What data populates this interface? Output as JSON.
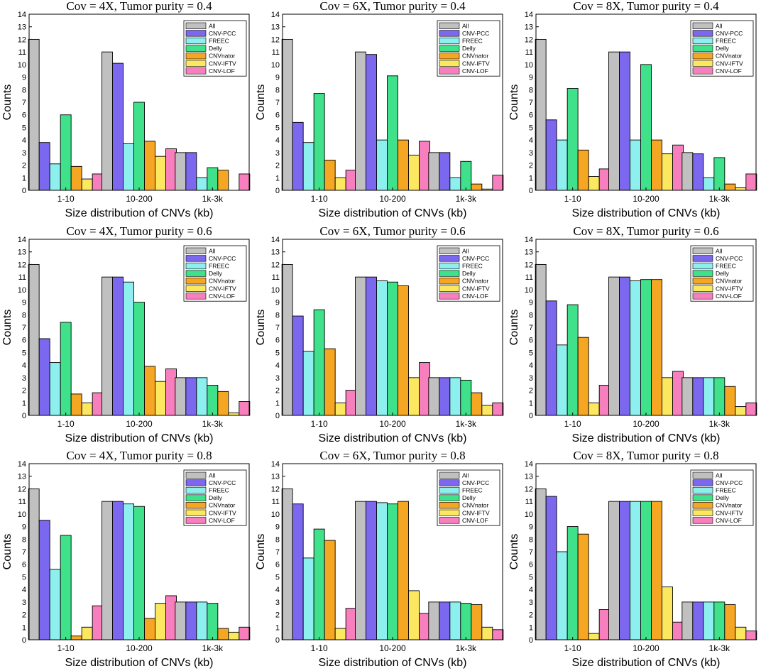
{
  "chart_data": [
    {
      "type": "bar",
      "title": "Cov = 4X, Tumor purity = 0.4",
      "xlabel": "Size distribution of CNVs (kb)",
      "ylabel": "Counts",
      "ylim": [
        0,
        14
      ],
      "yticks": [
        0,
        1,
        2,
        3,
        4,
        5,
        6,
        7,
        8,
        9,
        10,
        11,
        12,
        13,
        14
      ],
      "categories": [
        "1-10",
        "10-200",
        "1k-3k"
      ],
      "legend": "top-right",
      "series": [
        {
          "name": "All",
          "values": [
            12,
            11,
            3
          ]
        },
        {
          "name": "CNV-PCC",
          "values": [
            3.8,
            10.1,
            3
          ]
        },
        {
          "name": "FREEC",
          "values": [
            2.1,
            3.7,
            1
          ]
        },
        {
          "name": "Delly",
          "values": [
            6,
            7,
            1.8
          ]
        },
        {
          "name": "CNVnator",
          "values": [
            1.9,
            3.9,
            1.6
          ]
        },
        {
          "name": "CNV-IFTV",
          "values": [
            0.9,
            2.7,
            0
          ]
        },
        {
          "name": "CNV-LOF",
          "values": [
            1.3,
            3.3,
            1.3
          ]
        }
      ]
    },
    {
      "type": "bar",
      "title": "Cov = 6X, Tumor purity = 0.4",
      "xlabel": "Size distribution of CNVs (kb)",
      "ylabel": "Counts",
      "ylim": [
        0,
        14
      ],
      "yticks": [
        0,
        1,
        2,
        3,
        4,
        5,
        6,
        7,
        8,
        9,
        10,
        11,
        12,
        13,
        14
      ],
      "categories": [
        "1-10",
        "10-200",
        "1k-3k"
      ],
      "legend": "top-right",
      "series": [
        {
          "name": "All",
          "values": [
            12,
            11,
            3
          ]
        },
        {
          "name": "CNV-PCC",
          "values": [
            5.4,
            10.8,
            3
          ]
        },
        {
          "name": "FREEC",
          "values": [
            3.8,
            4,
            1
          ]
        },
        {
          "name": "Delly",
          "values": [
            7.7,
            9.1,
            2.3
          ]
        },
        {
          "name": "CNVnator",
          "values": [
            2.4,
            4,
            0.5
          ]
        },
        {
          "name": "CNV-IFTV",
          "values": [
            1,
            2.8,
            0.1
          ]
        },
        {
          "name": "CNV-LOF",
          "values": [
            1.6,
            3.9,
            1.2
          ]
        }
      ]
    },
    {
      "type": "bar",
      "title": "Cov = 8X, Tumor purity = 0.4",
      "xlabel": "Size distribution of CNVs (kb)",
      "ylabel": "Counts",
      "ylim": [
        0,
        14
      ],
      "yticks": [
        0,
        1,
        2,
        3,
        4,
        5,
        6,
        7,
        8,
        9,
        10,
        11,
        12,
        13,
        14
      ],
      "categories": [
        "1-10",
        "10-200",
        "1k-3k"
      ],
      "legend": "top-right",
      "series": [
        {
          "name": "All",
          "values": [
            12,
            11,
            3
          ]
        },
        {
          "name": "CNV-PCC",
          "values": [
            5.6,
            11,
            2.9
          ]
        },
        {
          "name": "FREEC",
          "values": [
            4,
            4,
            1
          ]
        },
        {
          "name": "Delly",
          "values": [
            8.1,
            10,
            2.6
          ]
        },
        {
          "name": "CNVnator",
          "values": [
            3.2,
            4,
            0.5
          ]
        },
        {
          "name": "CNV-IFTV",
          "values": [
            1.1,
            2.9,
            0.2
          ]
        },
        {
          "name": "CNV-LOF",
          "values": [
            1.7,
            3.6,
            1.3
          ]
        }
      ]
    },
    {
      "type": "bar",
      "title": "Cov = 4X, Tumor purity = 0.6",
      "xlabel": "Size distribution of CNVs (kb)",
      "ylabel": "Counts",
      "ylim": [
        0,
        14
      ],
      "yticks": [
        0,
        1,
        2,
        3,
        4,
        5,
        6,
        7,
        8,
        9,
        10,
        11,
        12,
        13,
        14
      ],
      "categories": [
        "1-10",
        "10-200",
        "1k-3k"
      ],
      "legend": "top-right",
      "series": [
        {
          "name": "All",
          "values": [
            12,
            11,
            3
          ]
        },
        {
          "name": "CNV-PCC",
          "values": [
            6.1,
            11,
            3
          ]
        },
        {
          "name": "FREEC",
          "values": [
            4.2,
            10.6,
            3
          ]
        },
        {
          "name": "Delly",
          "values": [
            7.4,
            9,
            2.4
          ]
        },
        {
          "name": "CNVnator",
          "values": [
            1.7,
            3.9,
            1.9
          ]
        },
        {
          "name": "CNV-IFTV",
          "values": [
            1,
            2.7,
            0.2
          ]
        },
        {
          "name": "CNV-LOF",
          "values": [
            1.8,
            3.7,
            1.1
          ]
        }
      ]
    },
    {
      "type": "bar",
      "title": "Cov = 6X, Tumor purity = 0.6",
      "xlabel": "Size distribution of CNVs (kb)",
      "ylabel": "Counts",
      "ylim": [
        0,
        14
      ],
      "yticks": [
        0,
        1,
        2,
        3,
        4,
        5,
        6,
        7,
        8,
        9,
        10,
        11,
        12,
        13,
        14
      ],
      "categories": [
        "1-10",
        "10-200",
        "1k-3k"
      ],
      "legend": "top-right",
      "series": [
        {
          "name": "All",
          "values": [
            12,
            11,
            3
          ]
        },
        {
          "name": "CNV-PCC",
          "values": [
            7.9,
            11,
            3
          ]
        },
        {
          "name": "FREEC",
          "values": [
            5.1,
            10.7,
            3
          ]
        },
        {
          "name": "Delly",
          "values": [
            8.4,
            10.6,
            2.8
          ]
        },
        {
          "name": "CNVnator",
          "values": [
            5.3,
            10.3,
            1.8
          ]
        },
        {
          "name": "CNV-IFTV",
          "values": [
            1,
            3,
            0.8
          ]
        },
        {
          "name": "CNV-LOF",
          "values": [
            2,
            4.2,
            1
          ]
        }
      ]
    },
    {
      "type": "bar",
      "title": "Cov = 8X, Tumor purity = 0.6",
      "xlabel": "Size distribution of CNVs (kb)",
      "ylabel": "Counts",
      "ylim": [
        0,
        14
      ],
      "yticks": [
        0,
        1,
        2,
        3,
        4,
        5,
        6,
        7,
        8,
        9,
        10,
        11,
        12,
        13,
        14
      ],
      "categories": [
        "1-10",
        "10-200",
        "1k-3k"
      ],
      "legend": "top-right",
      "series": [
        {
          "name": "All",
          "values": [
            12,
            11,
            3
          ]
        },
        {
          "name": "CNV-PCC",
          "values": [
            9.1,
            11,
            3
          ]
        },
        {
          "name": "FREEC",
          "values": [
            5.6,
            10.7,
            3
          ]
        },
        {
          "name": "Delly",
          "values": [
            8.8,
            10.8,
            3
          ]
        },
        {
          "name": "CNVnator",
          "values": [
            6.2,
            10.8,
            2.3
          ]
        },
        {
          "name": "CNV-IFTV",
          "values": [
            1,
            3,
            0.7
          ]
        },
        {
          "name": "CNV-LOF",
          "values": [
            2.4,
            3.5,
            1
          ]
        }
      ]
    },
    {
      "type": "bar",
      "title": "Cov = 4X, Tumor purity = 0.8",
      "xlabel": "Size distribution of CNVs (kb)",
      "ylabel": "Counts",
      "ylim": [
        0,
        14
      ],
      "yticks": [
        0,
        1,
        2,
        3,
        4,
        5,
        6,
        7,
        8,
        9,
        10,
        11,
        12,
        13,
        14
      ],
      "categories": [
        "1-10",
        "10-200",
        "1k-3k"
      ],
      "legend": "top-right",
      "series": [
        {
          "name": "All",
          "values": [
            12,
            11,
            3
          ]
        },
        {
          "name": "CNV-PCC",
          "values": [
            9.5,
            11,
            3
          ]
        },
        {
          "name": "FREEC",
          "values": [
            5.6,
            10.8,
            3
          ]
        },
        {
          "name": "Delly",
          "values": [
            8.3,
            10.6,
            2.9
          ]
        },
        {
          "name": "CNVnator",
          "values": [
            0.3,
            1.7,
            0.9
          ]
        },
        {
          "name": "CNV-IFTV",
          "values": [
            1,
            2.9,
            0.6
          ]
        },
        {
          "name": "CNV-LOF",
          "values": [
            2.7,
            3.5,
            1
          ]
        }
      ]
    },
    {
      "type": "bar",
      "title": "Cov = 6X, Tumor purity = 0.8",
      "xlabel": "Size distribution of CNVs (kb)",
      "ylabel": "Counts",
      "ylim": [
        0,
        14
      ],
      "yticks": [
        0,
        1,
        2,
        3,
        4,
        5,
        6,
        7,
        8,
        9,
        10,
        11,
        12,
        13,
        14
      ],
      "categories": [
        "1-10",
        "10-200",
        "1k-3k"
      ],
      "legend": "top-right",
      "series": [
        {
          "name": "All",
          "values": [
            12,
            11,
            3
          ]
        },
        {
          "name": "CNV-PCC",
          "values": [
            10.8,
            11,
            3
          ]
        },
        {
          "name": "FREEC",
          "values": [
            6.5,
            10.9,
            3
          ]
        },
        {
          "name": "Delly",
          "values": [
            8.8,
            10.8,
            2.9
          ]
        },
        {
          "name": "CNVnator",
          "values": [
            7.9,
            11,
            2.8
          ]
        },
        {
          "name": "CNV-IFTV",
          "values": [
            0.9,
            3.9,
            1
          ]
        },
        {
          "name": "CNV-LOF",
          "values": [
            2.5,
            2.1,
            0.8
          ]
        }
      ]
    },
    {
      "type": "bar",
      "title": "Cov = 8X, Tumor purity = 0.8",
      "xlabel": "Size distribution of CNVs (kb)",
      "ylabel": "Counts",
      "ylim": [
        0,
        14
      ],
      "yticks": [
        0,
        1,
        2,
        3,
        4,
        5,
        6,
        7,
        8,
        9,
        10,
        11,
        12,
        13,
        14
      ],
      "categories": [
        "1-10",
        "10-200",
        "1k-3k"
      ],
      "legend": "top-right",
      "series": [
        {
          "name": "All",
          "values": [
            12,
            11,
            3
          ]
        },
        {
          "name": "CNV-PCC",
          "values": [
            11.4,
            11,
            3
          ]
        },
        {
          "name": "FREEC",
          "values": [
            7,
            11,
            3
          ]
        },
        {
          "name": "Delly",
          "values": [
            9,
            11,
            3
          ]
        },
        {
          "name": "CNVnator",
          "values": [
            8.4,
            11,
            2.8
          ]
        },
        {
          "name": "CNV-IFTV",
          "values": [
            0.5,
            4.2,
            1
          ]
        },
        {
          "name": "CNV-LOF",
          "values": [
            2.4,
            1.4,
            0.7
          ]
        }
      ]
    }
  ],
  "series_colors": [
    "#c0c0c0",
    "#7b68ee",
    "#8ef0ee",
    "#3fe28a",
    "#f5a623",
    "#fbe760",
    "#f87fbd"
  ]
}
